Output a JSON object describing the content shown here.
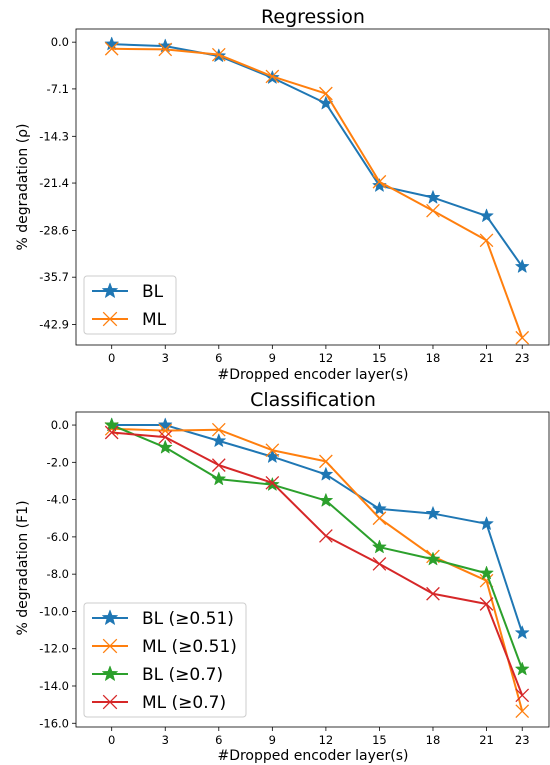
{
  "chart_data": [
    {
      "type": "line",
      "title": "Regression",
      "xlabel": "#Dropped encoder layer(s)",
      "ylabel": "% degradation (ρ)",
      "x": [
        0,
        3,
        6,
        9,
        12,
        15,
        18,
        21,
        23
      ],
      "yticks": [
        "0.0",
        "-7.1",
        "-14.3",
        "-21.4",
        "-28.6",
        "-35.7",
        "-42.9"
      ],
      "ytick_values": [
        0.0,
        -7.1,
        -14.3,
        -21.4,
        -28.6,
        -35.7,
        -42.9
      ],
      "ylim": [
        -46.0,
        2.0
      ],
      "grid": false,
      "legend_position": "bottom-left",
      "series": [
        {
          "name": "BL",
          "marker": "star",
          "color": "#1f77b4",
          "values": [
            -0.3,
            -0.6,
            -2.1,
            -5.4,
            -9.3,
            -21.8,
            -23.6,
            -26.4,
            -34.1
          ]
        },
        {
          "name": "ML",
          "marker": "x",
          "color": "#ff7f0e",
          "values": [
            -1.0,
            -1.1,
            -1.9,
            -5.2,
            -7.8,
            -21.2,
            -25.6,
            -30.1,
            -44.9
          ]
        }
      ]
    },
    {
      "type": "line",
      "title": "Classification",
      "xlabel": "#Dropped encoder layer(s)",
      "ylabel": "% degradation (F1)",
      "x": [
        0,
        3,
        6,
        9,
        12,
        15,
        18,
        21,
        23
      ],
      "yticks": [
        "0.0",
        "-2.0",
        "-4.0",
        "-6.0",
        "-8.0",
        "-10.0",
        "-12.0",
        "-14.0",
        "-16.0"
      ],
      "ytick_values": [
        0.0,
        -2.0,
        -4.0,
        -6.0,
        -8.0,
        -10.0,
        -12.0,
        -14.0,
        -16.0
      ],
      "ylim": [
        -16.2,
        0.7
      ],
      "grid": false,
      "legend_position": "bottom-left",
      "series": [
        {
          "name": "BL (≥0.51)",
          "marker": "star",
          "color": "#1f77b4",
          "values": [
            0.0,
            0.0,
            -0.85,
            -1.7,
            -2.65,
            -4.5,
            -4.75,
            -5.3,
            -11.15
          ]
        },
        {
          "name": "ML (≥0.51)",
          "marker": "x",
          "color": "#ff7f0e",
          "values": [
            -0.2,
            -0.3,
            -0.25,
            -1.35,
            -1.95,
            -5.0,
            -7.05,
            -8.35,
            -15.35
          ]
        },
        {
          "name": "BL (≥0.7)",
          "marker": "star",
          "color": "#2ca02c",
          "values": [
            0.0,
            -1.2,
            -2.9,
            -3.2,
            -4.05,
            -6.55,
            -7.2,
            -7.95,
            -13.1
          ]
        },
        {
          "name": "ML (≥0.7)",
          "marker": "x",
          "color": "#d62728",
          "values": [
            -0.4,
            -0.65,
            -2.15,
            -3.1,
            -5.95,
            -7.45,
            -9.05,
            -9.6,
            -14.5
          ]
        }
      ]
    }
  ]
}
